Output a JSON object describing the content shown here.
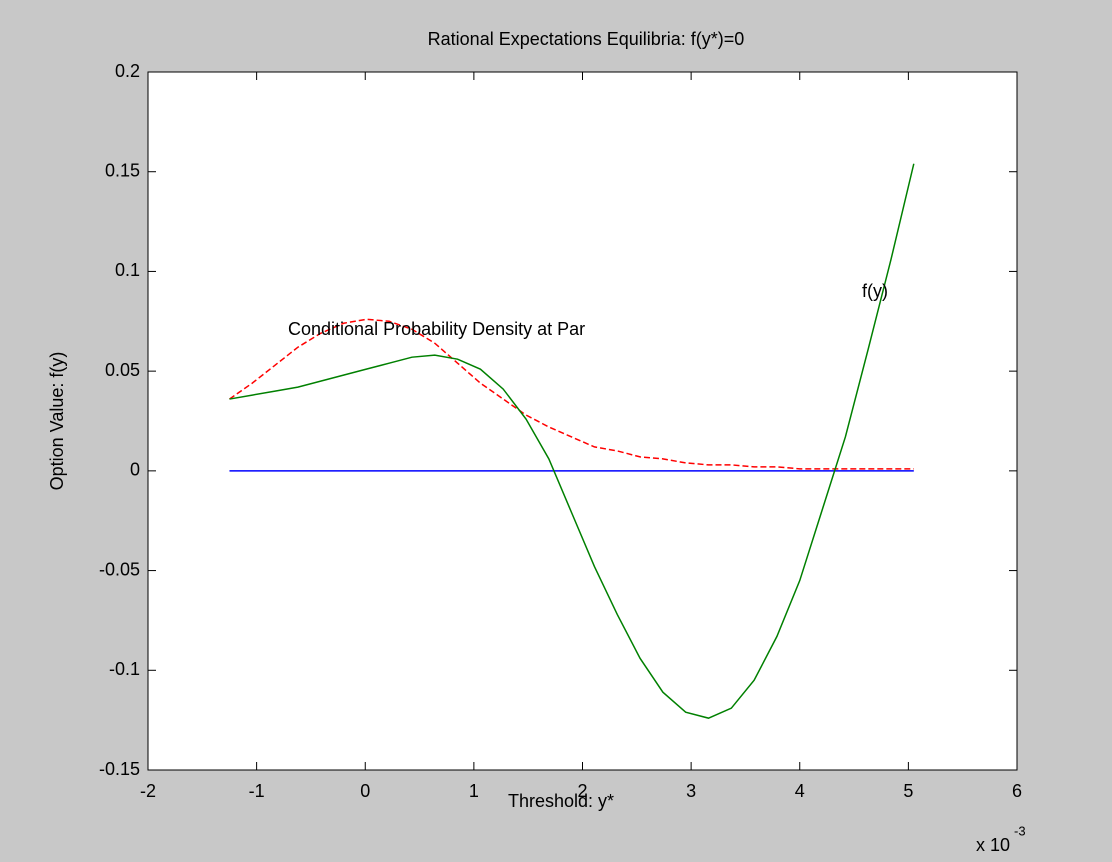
{
  "chart_data": {
    "type": "line",
    "title": "Rational Expectations Equilibria: f(y*)=0",
    "x_label": "Threshold: y*",
    "y_label": "Option Value: f(y)",
    "x_exponent": {
      "base": "x 10",
      "power": "-3"
    },
    "annotations": [
      "f(y)",
      "Conditional Probability Density at Par"
    ],
    "x": [
      -1.25,
      -1.04,
      -0.83,
      -0.62,
      -0.41,
      -0.2,
      0.01,
      0.22,
      0.43,
      0.64,
      0.85,
      1.06,
      1.27,
      1.48,
      1.69,
      1.9,
      2.11,
      2.32,
      2.53,
      2.74,
      2.95,
      3.16,
      3.37,
      3.58,
      3.79,
      4.0,
      4.21,
      4.42,
      4.63,
      4.84,
      5.05
    ],
    "series": [
      {
        "color": "#0000ff",
        "dash": false,
        "values": [
          0,
          0,
          0,
          0,
          0,
          0,
          0,
          0,
          0,
          0,
          0,
          0,
          0,
          0,
          0,
          0,
          0,
          0,
          0,
          0,
          0,
          0,
          0,
          0,
          0,
          0,
          0,
          0,
          0,
          0,
          0
        ]
      },
      {
        "color": "#ff0000",
        "dash": true,
        "values": [
          0.036,
          0.044,
          0.053,
          0.062,
          0.069,
          0.074,
          0.076,
          0.075,
          0.071,
          0.064,
          0.054,
          0.044,
          0.036,
          0.028,
          0.022,
          0.017,
          0.012,
          0.01,
          0.007,
          0.006,
          0.004,
          0.003,
          0.003,
          0.002,
          0.002,
          0.001,
          0.001,
          0.001,
          0.001,
          0.001,
          0.001
        ]
      },
      {
        "color": "#008000",
        "dash": false,
        "values": [
          0.036,
          0.038,
          0.04,
          0.042,
          0.045,
          0.048,
          0.051,
          0.054,
          0.057,
          0.058,
          0.056,
          0.051,
          0.041,
          0.026,
          0.006,
          -0.021,
          -0.048,
          -0.072,
          -0.094,
          -0.111,
          -0.121,
          -0.124,
          -0.119,
          -0.105,
          -0.083,
          -0.055,
          -0.019,
          0.017,
          0.061,
          0.106,
          0.154
        ]
      }
    ],
    "xlim": [
      -2,
      6
    ],
    "xticks": [
      -2,
      -1,
      0,
      1,
      2,
      3,
      4,
      5,
      6
    ],
    "ylim": [
      -0.15,
      0.2
    ],
    "yticks": [
      -0.15,
      -0.1,
      -0.05,
      0,
      0.05,
      0.1,
      0.15,
      0.2
    ],
    "grid": false
  }
}
